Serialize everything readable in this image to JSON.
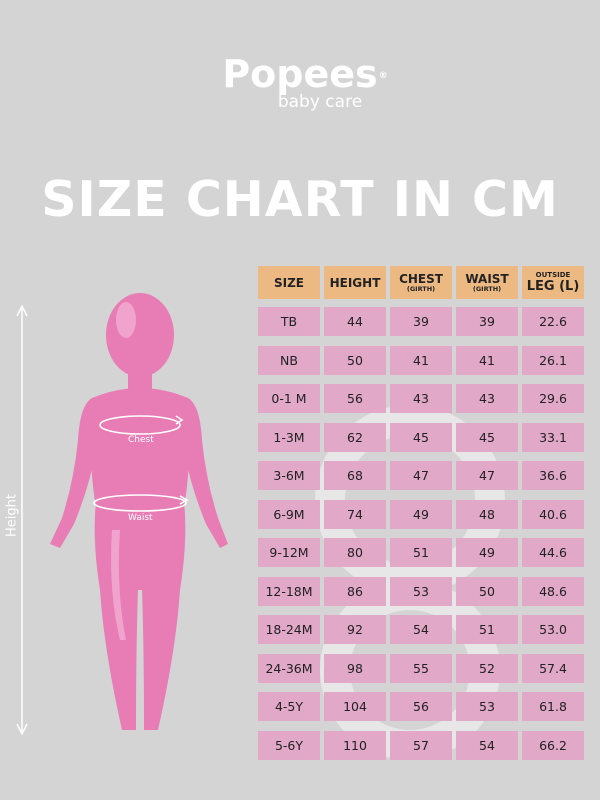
{
  "brand": {
    "name": "Popees",
    "registered": "®",
    "tagline": "baby care"
  },
  "title": "SIZE CHART IN CM",
  "figure": {
    "height_label": "Height",
    "chest_label": "Chest",
    "waist_label": "Waist"
  },
  "table": {
    "headers": [
      {
        "main": "SIZE",
        "sub": "",
        "sup": ""
      },
      {
        "main": "HEIGHT",
        "sub": "",
        "sup": ""
      },
      {
        "main": "CHEST",
        "sub": "(GIRTH)",
        "sup": ""
      },
      {
        "main": "WAIST",
        "sub": "(GIRTH)",
        "sup": ""
      },
      {
        "main": "LEG (L)",
        "sub": "",
        "sup": "OUTSIDE"
      }
    ],
    "rows": [
      [
        "TB",
        "44",
        "39",
        "39",
        "22.6"
      ],
      [
        "NB",
        "50",
        "41",
        "41",
        "26.1"
      ],
      [
        "0-1 M",
        "56",
        "43",
        "43",
        "29.6"
      ],
      [
        "1-3M",
        "62",
        "45",
        "45",
        "33.1"
      ],
      [
        "3-6M",
        "68",
        "47",
        "47",
        "36.6"
      ],
      [
        "6-9M",
        "74",
        "49",
        "48",
        "40.6"
      ],
      [
        "9-12M",
        "80",
        "51",
        "49",
        "44.6"
      ],
      [
        "12-18M",
        "86",
        "53",
        "50",
        "48.6"
      ],
      [
        "18-24M",
        "92",
        "54",
        "51",
        "53.0"
      ],
      [
        "24-36M",
        "98",
        "55",
        "52",
        "57.4"
      ],
      [
        "4-5Y",
        "104",
        "56",
        "53",
        "61.8"
      ],
      [
        "5-6Y",
        "110",
        "57",
        "54",
        "66.2"
      ]
    ]
  },
  "colors": {
    "background": "#d4d4d4",
    "header": "#ecb982",
    "cell": "#e2a8c8",
    "figure": "#e87cb5"
  }
}
